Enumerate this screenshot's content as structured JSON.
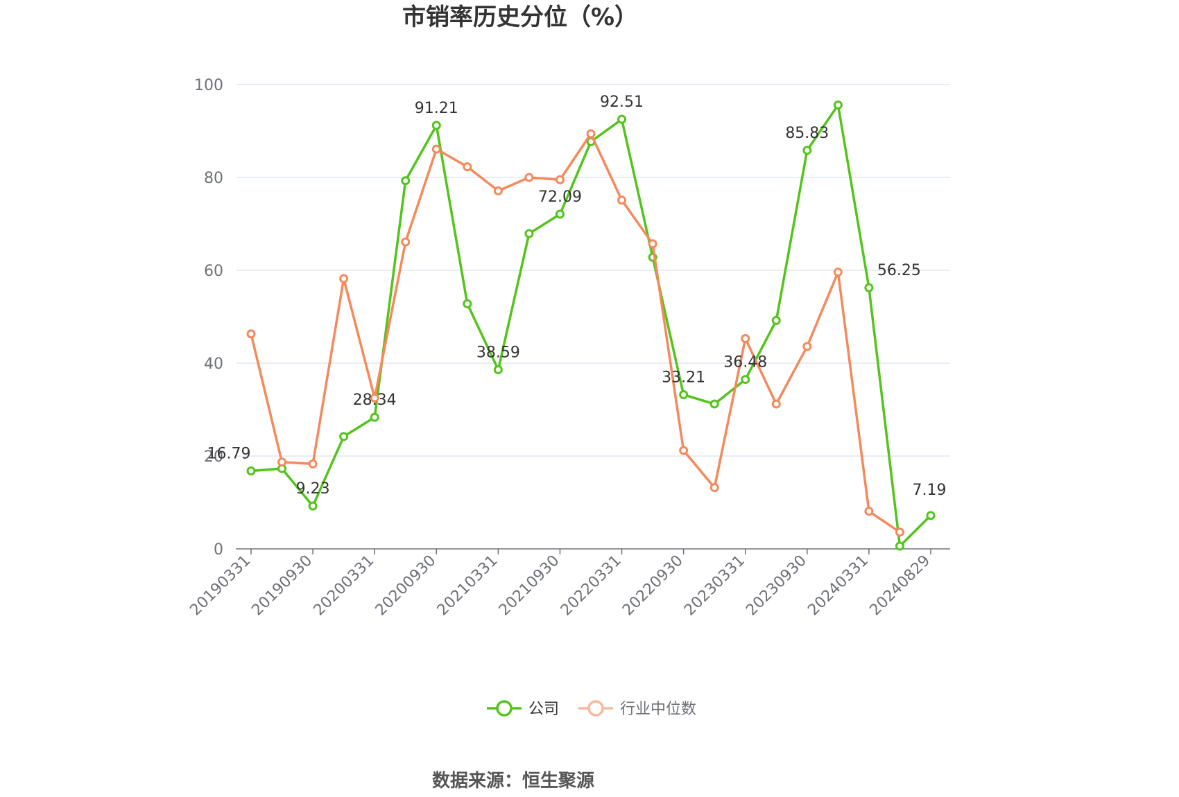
{
  "chart_data": {
    "type": "line",
    "title": "市销率历史分位（%）",
    "x": [
      "20190331",
      "20190630",
      "20190930",
      "20191231",
      "20200331",
      "20200630",
      "20200930",
      "20201231",
      "20210331",
      "20210630",
      "20210930",
      "20211231",
      "20220331",
      "20220630",
      "20220930",
      "20221231",
      "20230331",
      "20230630",
      "20230930",
      "20231231",
      "20240331",
      "20240630",
      "20240829"
    ],
    "x_tick_labels": [
      "20190331",
      "20190930",
      "20200331",
      "20200930",
      "20210331",
      "20210930",
      "20220331",
      "20220930",
      "20230331",
      "20230930",
      "20240331",
      "20240829"
    ],
    "ylim": [
      0,
      100
    ],
    "yticks": [
      0,
      20,
      40,
      60,
      80,
      100
    ],
    "grid": true,
    "legend_position": "bottom",
    "series": [
      {
        "name": "公司",
        "color": "#52c41a",
        "values": [
          16.79,
          17.3,
          9.23,
          24.2,
          28.34,
          79.3,
          91.21,
          52.8,
          38.59,
          67.9,
          72.09,
          87.7,
          92.51,
          62.8,
          33.21,
          31.2,
          36.48,
          49.2,
          85.83,
          95.6,
          56.25,
          0.6,
          7.19
        ],
        "labels": {
          "0": "16.79",
          "2": "9.23",
          "4": "28.34",
          "6": "91.21",
          "8": "38.59",
          "10": "72.09",
          "12": "92.51",
          "14": "33.21",
          "16": "36.48",
          "18": "85.83",
          "20": "56.25",
          "22": "7.19"
        }
      },
      {
        "name": "行业中位数",
        "color": "#f5895b",
        "values": [
          46.3,
          18.7,
          18.3,
          58.2,
          32.5,
          66.1,
          86.1,
          82.3,
          77.1,
          80.0,
          79.5,
          89.4,
          75.1,
          65.7,
          21.2,
          13.2,
          45.3,
          31.2,
          43.6,
          59.6,
          8.1,
          3.6,
          null
        ]
      }
    ]
  },
  "source_text": "数据来源：恒生聚源"
}
